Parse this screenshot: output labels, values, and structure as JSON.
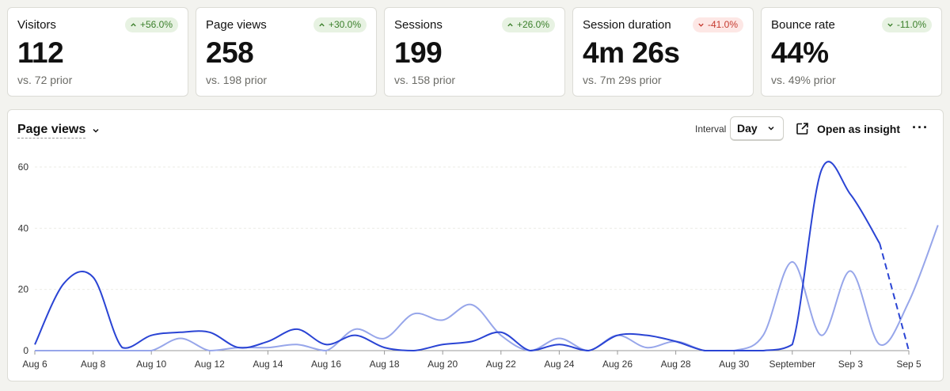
{
  "cards": [
    {
      "label": "Visitors",
      "badge": "+56.0%",
      "dir": "up",
      "value": "112",
      "prior": "vs. 72 prior"
    },
    {
      "label": "Page views",
      "badge": "+30.0%",
      "dir": "up",
      "value": "258",
      "prior": "vs. 198 prior"
    },
    {
      "label": "Sessions",
      "badge": "+26.0%",
      "dir": "up",
      "value": "199",
      "prior": "vs. 158 prior"
    },
    {
      "label": "Session duration",
      "badge": "-41.0%",
      "dir": "down",
      "value": "4m 26s",
      "prior": "vs. 7m 29s prior"
    },
    {
      "label": "Bounce rate",
      "badge": "-11.0%",
      "dir": "down-good",
      "value": "44%",
      "prior": "vs. 49% prior"
    }
  ],
  "panel": {
    "title": "Page views",
    "interval_label": "Interval",
    "interval_value": "Day",
    "open_insight": "Open as insight",
    "more": "···"
  },
  "colors": {
    "current": "#2a44d4",
    "previous": "#97a6ea",
    "grid": "#ebebe6"
  },
  "chart_data": {
    "type": "line",
    "ylim": [
      0,
      60
    ],
    "yticks": [
      0,
      20,
      40,
      60
    ],
    "x_tick_labels": [
      "Aug 6",
      "Aug 8",
      "Aug 10",
      "Aug 12",
      "Aug 14",
      "Aug 16",
      "Aug 18",
      "Aug 20",
      "Aug 22",
      "Aug 24",
      "Aug 26",
      "Aug 28",
      "Aug 30",
      "September",
      "Sep 3",
      "Sep 5"
    ],
    "series": [
      {
        "key": "current",
        "values": [
          2,
          22,
          24,
          1,
          5,
          6,
          6,
          1,
          3,
          7,
          2,
          5,
          1,
          0,
          2,
          3,
          6,
          0,
          2,
          0,
          5,
          5,
          3,
          0,
          0,
          0,
          2,
          59,
          51,
          35,
          0
        ],
        "dashed_from_index": 29
      },
      {
        "key": "previous",
        "values": [
          0,
          0,
          0,
          0,
          0,
          4,
          0,
          1,
          1,
          2,
          0,
          7,
          4,
          12,
          10,
          15,
          5,
          0,
          4,
          0,
          5,
          1,
          3,
          0,
          0,
          5,
          29,
          5,
          26,
          2,
          16,
          41
        ]
      }
    ]
  }
}
